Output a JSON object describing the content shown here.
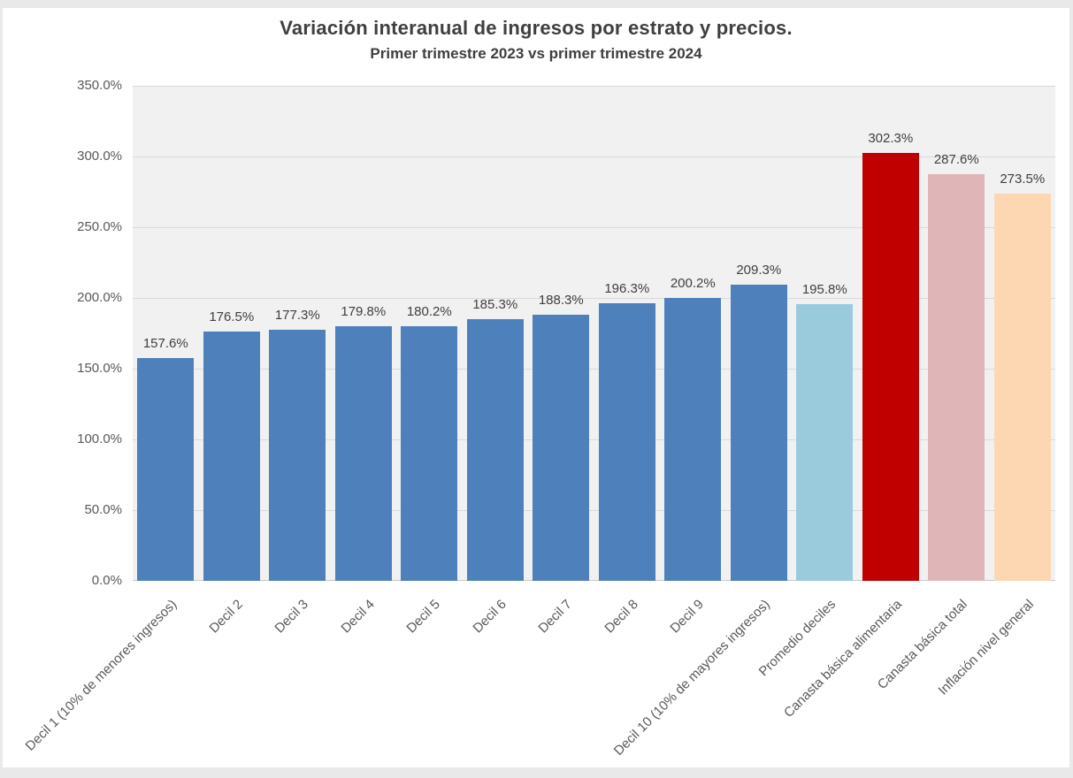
{
  "frame": {
    "background": "#ffffff",
    "border_color": "#e9e9e9"
  },
  "chart_data": {
    "type": "bar",
    "title": "Variación interanual de ingresos por estrato y precios.",
    "subtitle": "Primer trimestre 2023 vs primer trimestre 2024",
    "categories": [
      "Decil 1 (10% de menores ingresos)",
      "Decil 2",
      "Decil 3",
      "Decil 4",
      "Decil 5",
      "Decil 6",
      "Decil 7",
      "Decil 8",
      "Decil 9",
      "Decil 10 (10% de mayores ingresos)",
      "Promedio deciles",
      "Canasta básica alimentaria",
      "Canasta básica total",
      "Inflación nivel general"
    ],
    "values": [
      157.6,
      176.5,
      177.3,
      179.8,
      180.2,
      185.3,
      188.3,
      196.3,
      200.2,
      209.3,
      195.8,
      302.3,
      287.6,
      273.5
    ],
    "value_labels": [
      "157.6%",
      "176.5%",
      "177.3%",
      "179.8%",
      "180.2%",
      "185.3%",
      "188.3%",
      "196.3%",
      "200.2%",
      "209.3%",
      "195.8%",
      "302.3%",
      "287.6%",
      "273.5%"
    ],
    "bar_colors": [
      "#4e80bc",
      "#4e80bc",
      "#4e80bc",
      "#4e80bc",
      "#4e80bc",
      "#4e80bc",
      "#4e80bc",
      "#4e80bc",
      "#4e80bc",
      "#4e80bc",
      "#99cbdd",
      "#c00000",
      "#e0b5b8",
      "#fcd7b2"
    ],
    "ylim": [
      0,
      350
    ],
    "ytick_step": 50,
    "ytick_labels": [
      "0.0%",
      "50.0%",
      "100.0%",
      "150.0%",
      "200.0%",
      "250.0%",
      "300.0%",
      "350.0%"
    ],
    "xlabel": "",
    "ylabel": "",
    "grid": "horizontal",
    "legend_position": "none",
    "styles": {
      "plot_background": "#f1f1f1",
      "gridline_color": "#d9d9d9",
      "title_color": "#3f3f3f",
      "tick_label_color": "#595959",
      "value_label_color": "#3f3f3f"
    }
  }
}
